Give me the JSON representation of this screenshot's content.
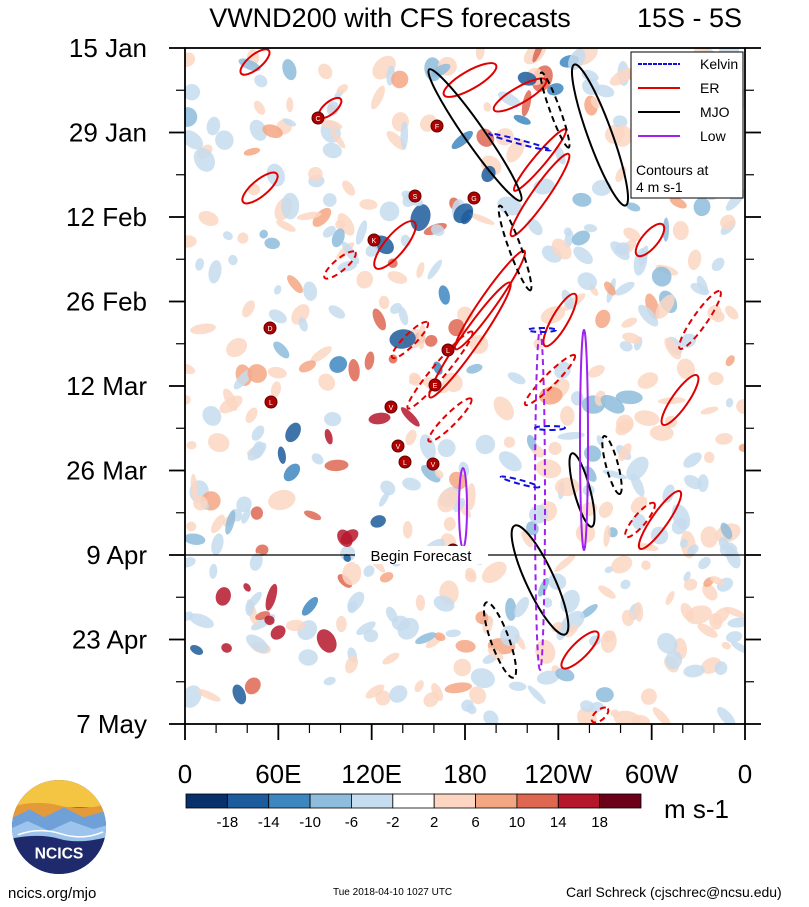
{
  "chart_data": {
    "type": "heatmap",
    "title": "VWND200 with CFS forecasts",
    "title_right": "15S - 5S",
    "x_ticks": [
      "0",
      "60E",
      "120E",
      "180",
      "120W",
      "60W",
      "0"
    ],
    "y_ticks": [
      "15 Jan",
      "29 Jan",
      "12 Feb",
      "26 Feb",
      "12 Mar",
      "26 Mar",
      "9 Apr",
      "23 Apr",
      "7 May"
    ],
    "forecast_line_label": "Begin Forecast",
    "forecast_start": "9 Apr",
    "colorbar": {
      "levels": [
        "-18",
        "-14",
        "-10",
        "-6",
        "-2",
        "2",
        "6",
        "10",
        "14",
        "18"
      ],
      "colors": [
        "#08306b",
        "#1d5c9c",
        "#3d87c0",
        "#8dbcdc",
        "#c6dcef",
        "#ffffff",
        "#fcd6c2",
        "#f4a683",
        "#de6752",
        "#b5182b",
        "#6b0018"
      ],
      "units": "m s-1"
    },
    "legend": {
      "items": [
        {
          "label": "Kelvin",
          "color": "#1010e0",
          "dash": "dashed"
        },
        {
          "label": "ER",
          "color": "#e00000",
          "dash": "solid"
        },
        {
          "label": "MJO",
          "color": "#000000",
          "dash": "solid"
        },
        {
          "label": "Low",
          "color": "#a020f0",
          "dash": "solid"
        }
      ],
      "note_line1": "Contours at",
      "note_line2": "4 m s-1",
      "placement": "top-right"
    },
    "storm_labels": [
      "C",
      "F",
      "S",
      "G",
      "K",
      "D",
      "L",
      "E",
      "L",
      "V",
      "V",
      "L",
      "V",
      "K"
    ]
  },
  "footer": {
    "left": "ncics.org/mjo",
    "center": "Tue 2018-04-10 1027 UTC",
    "right": "Carl Schreck (cjschrec@ncsu.edu)",
    "logo_text": "NCICS"
  }
}
